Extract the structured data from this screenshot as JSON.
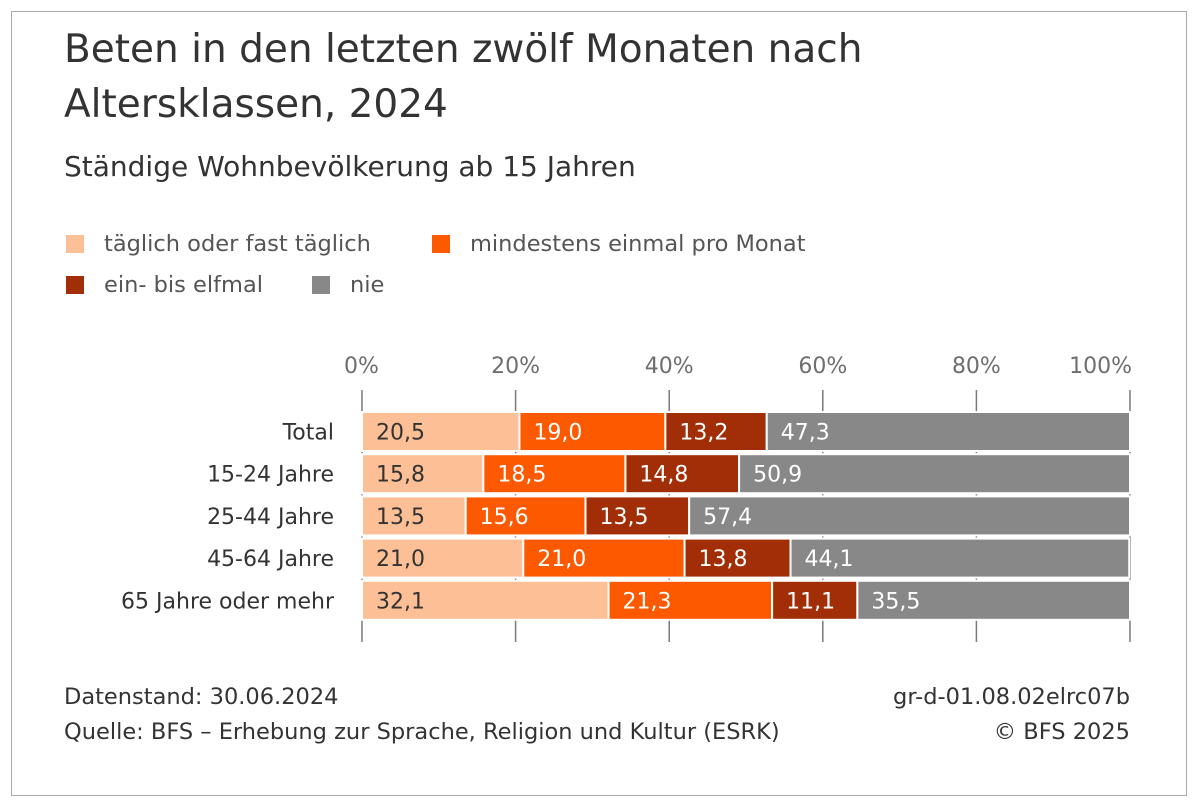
{
  "chart_data": {
    "type": "bar",
    "orientation": "horizontal",
    "stacked": true,
    "title": "Beten in den letzten zwölf Monaten nach Altersklassen, 2024",
    "subtitle": "Ständige Wohnbevölkerung ab 15 Jahren",
    "categories": [
      "Total",
      "15-24 Jahre",
      "25-44 Jahre",
      "45-64 Jahre",
      "65 Jahre oder mehr"
    ],
    "series": [
      {
        "name": "täglich oder fast täglich",
        "color": "#fdbf95",
        "label_color": "#333333",
        "values": [
          20.5,
          15.8,
          13.5,
          21.0,
          32.1
        ]
      },
      {
        "name": "mindestens einmal pro Monat",
        "color": "#fd5900",
        "label_color": "#ffffff",
        "values": [
          19.0,
          18.5,
          15.6,
          21.0,
          21.3
        ]
      },
      {
        "name": "ein- bis elfmal",
        "color": "#a12e07",
        "label_color": "#ffffff",
        "values": [
          13.2,
          14.8,
          13.5,
          13.8,
          11.1
        ]
      },
      {
        "name": "nie",
        "color": "#888888",
        "label_color": "#ffffff",
        "values": [
          47.3,
          50.9,
          57.4,
          44.1,
          35.5
        ]
      }
    ],
    "xlim": [
      0,
      100
    ],
    "ticks": [
      "0%",
      "20%",
      "40%",
      "60%",
      "80%",
      "100%"
    ],
    "tick_values": [
      0,
      20,
      40,
      60,
      80,
      100
    ],
    "grid": true,
    "legend_position": "top"
  },
  "footer": {
    "date": "Datenstand: 30.06.2024",
    "source": "Quelle: BFS – Erhebung zur Sprache, Religion und Kultur (ESRK)",
    "code": "gr-d-01.08.02elrc07b",
    "copyright": "© BFS 2025"
  }
}
